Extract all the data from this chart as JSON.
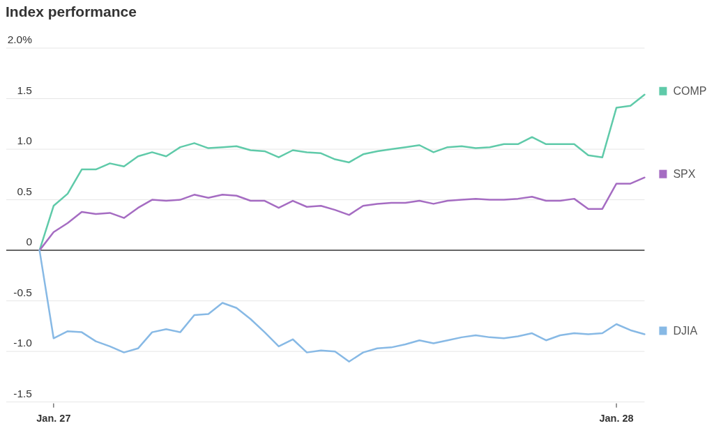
{
  "chart_data": {
    "type": "line",
    "title": "Index performance",
    "categories": [
      null,
      "Jan. 27",
      null,
      null,
      null,
      null,
      null,
      null,
      null,
      null,
      null,
      null,
      null,
      null,
      null,
      null,
      null,
      null,
      null,
      null,
      null,
      null,
      null,
      null,
      null,
      null,
      null,
      null,
      null,
      null,
      null,
      null,
      null,
      null,
      null,
      null,
      null,
      null,
      null,
      null,
      null,
      "Jan. 28",
      null,
      null
    ],
    "ylim": [
      -1.5,
      2
    ],
    "yticks": [
      {
        "value": -1.5,
        "label": "-1.5"
      },
      {
        "value": -1,
        "label": "-1.0"
      },
      {
        "value": -0.5,
        "label": "-0.5"
      },
      0,
      {
        "value": 0.5,
        "label": "0.5"
      },
      {
        "value": 1,
        "label": "1.0"
      },
      {
        "value": 1.5,
        "label": "1.5"
      },
      {
        "value": 2,
        "label": "2.0%"
      }
    ],
    "grid": "y",
    "legend": "right",
    "series": [
      {
        "name": "COMP",
        "color": "#5fcaa9",
        "values": [
          0,
          0.44,
          0.56,
          0.8,
          0.8,
          0.86,
          0.83,
          0.93,
          0.97,
          0.93,
          1.02,
          1.06,
          1.01,
          1.02,
          1.03,
          0.99,
          0.98,
          0.92,
          0.99,
          0.97,
          0.96,
          0.9,
          0.87,
          0.95,
          0.98,
          1.0,
          1.02,
          1.04,
          0.97,
          1.02,
          1.03,
          1.01,
          1.02,
          1.05,
          1.05,
          1.12,
          1.05,
          1.05,
          1.05,
          0.94,
          0.92,
          1.41,
          1.43,
          1.54
        ]
      },
      {
        "name": "SPX",
        "color": "#a56cc2",
        "values": [
          0,
          0.18,
          0.27,
          0.38,
          0.36,
          0.37,
          0.32,
          0.42,
          0.5,
          0.49,
          0.5,
          0.55,
          0.52,
          0.55,
          0.54,
          0.49,
          0.49,
          0.42,
          0.49,
          0.43,
          0.44,
          0.4,
          0.35,
          0.44,
          0.46,
          0.47,
          0.47,
          0.49,
          0.46,
          0.49,
          0.5,
          0.51,
          0.5,
          0.5,
          0.51,
          0.53,
          0.49,
          0.49,
          0.51,
          0.41,
          0.41,
          0.66,
          0.66,
          0.72
        ]
      },
      {
        "name": "DJIA",
        "color": "#87b9e5",
        "values": [
          0,
          -0.87,
          -0.8,
          -0.81,
          -0.9,
          -0.95,
          -1.01,
          -0.97,
          -0.81,
          -0.78,
          -0.81,
          -0.64,
          -0.63,
          -0.52,
          -0.57,
          -0.68,
          -0.81,
          -0.95,
          -0.88,
          -1.01,
          -0.99,
          -1.0,
          -1.1,
          -1.01,
          -0.97,
          -0.96,
          -0.93,
          -0.89,
          -0.92,
          -0.89,
          -0.86,
          -0.84,
          -0.86,
          -0.87,
          -0.85,
          -0.82,
          -0.89,
          -0.84,
          -0.82,
          -0.83,
          -0.82,
          -0.73,
          -0.79,
          -0.83
        ]
      }
    ]
  }
}
